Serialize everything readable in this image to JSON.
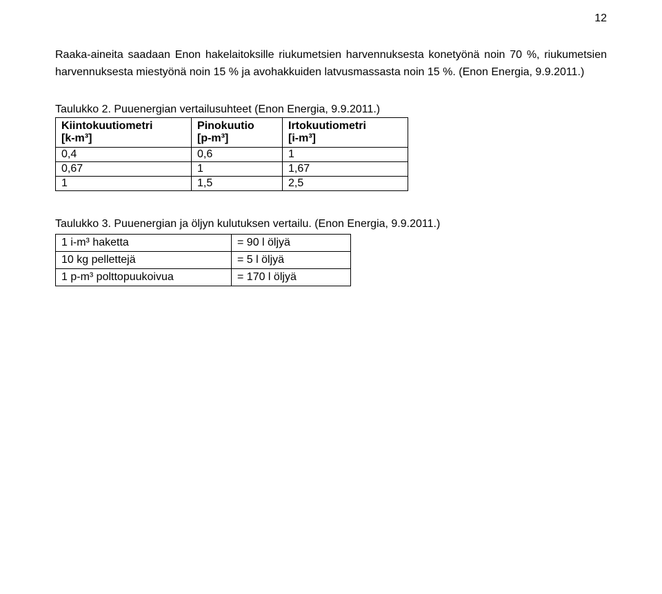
{
  "page_number": "12",
  "paragraph": "Raaka-aineita saadaan Enon hakelaitoksille riukumetsien harvennuksesta konetyönä noin 70 %, riukumetsien harvennuksesta miestyönä noin 15 % ja avohakkuiden latvusmassasta noin 15 %. (Enon Energia, 9.9.2011.)",
  "table2": {
    "caption": "Taulukko 2. Puuenergian vertailusuhteet (Enon Energia, 9.9.2011.)",
    "headers": {
      "col1_a": "Kiintokuutiometri",
      "col1_b": "[k-m³]",
      "col2_a": "Pinokuutio",
      "col2_b": "[p-m³]",
      "col3_a": "Irtokuutiometri",
      "col3_b": "[i-m³]"
    },
    "rows": [
      {
        "c1": "0,4",
        "c2": "0,6",
        "c3": "1"
      },
      {
        "c1": "0,67",
        "c2": "1",
        "c3": "1,67"
      },
      {
        "c1": "1",
        "c2": "1,5",
        "c3": "2,5"
      }
    ]
  },
  "table3": {
    "caption": "Taulukko 3. Puuenergian ja öljyn kulutuksen vertailu. (Enon Energia, 9.9.2011.)",
    "rows": [
      {
        "c1": "1 i-m³ haketta",
        "c2": "= 90 l öljyä"
      },
      {
        "c1": "10 kg pellettejä",
        "c2": "= 5 l öljyä"
      },
      {
        "c1": "1 p-m³ polttopuukoivua",
        "c2": "= 170 l öljyä"
      }
    ]
  }
}
